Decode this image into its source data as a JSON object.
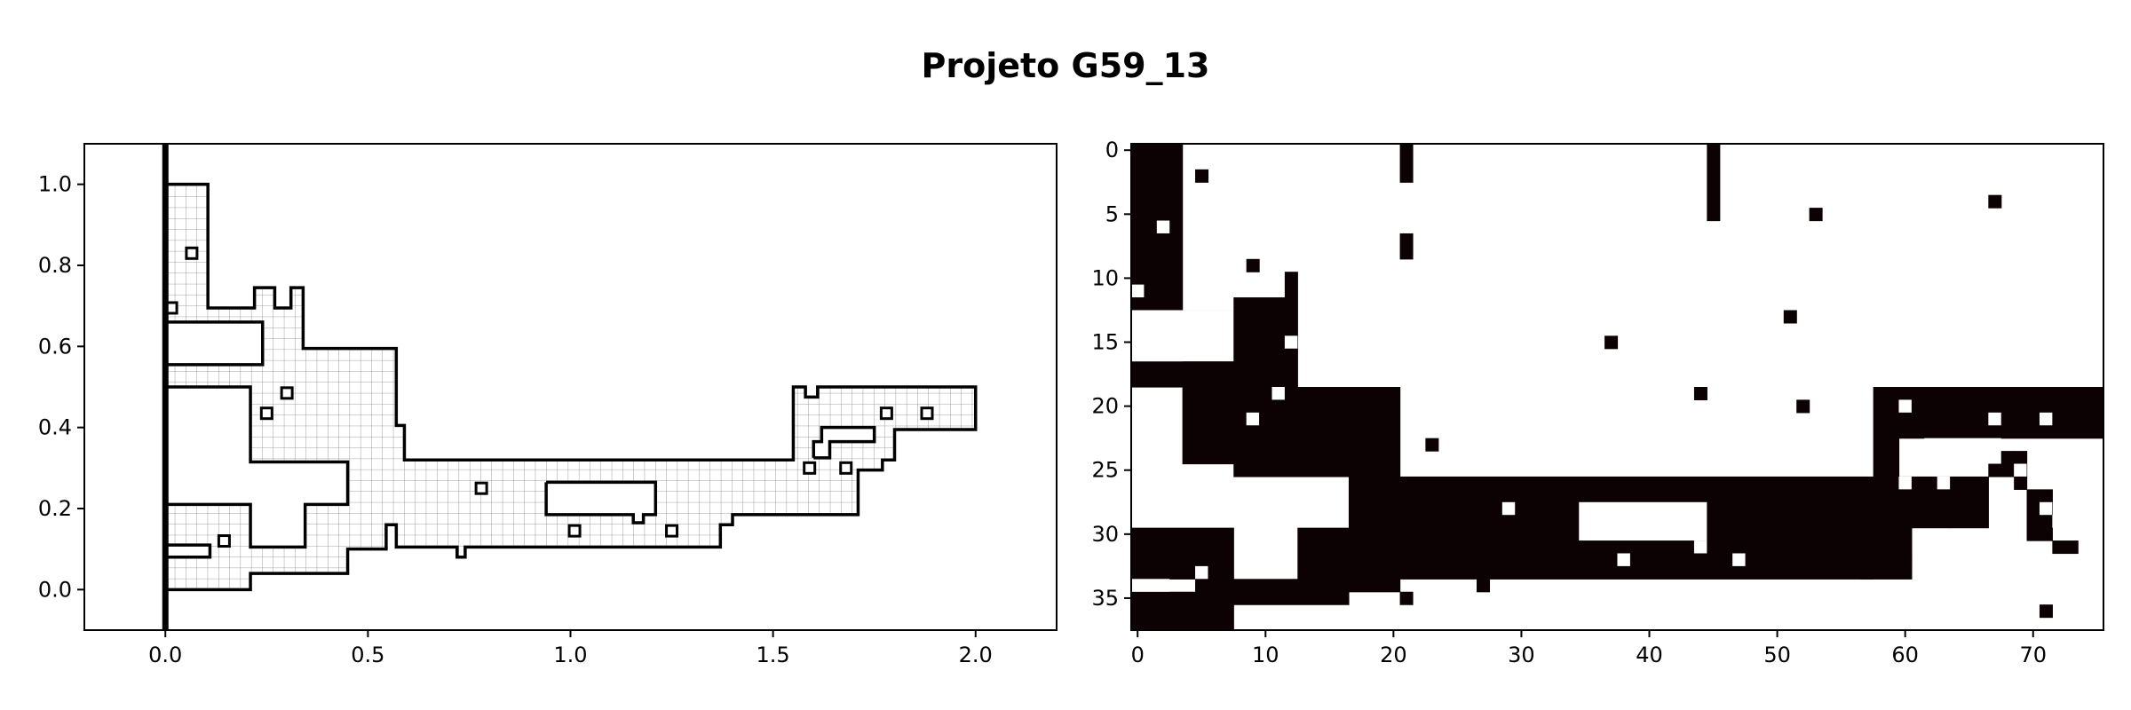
{
  "title": "Projeto G59_13",
  "chart_data": [
    {
      "type": "line",
      "description_role": "boundary polygons over a fine grid",
      "xlim": [
        -0.2,
        2.2
      ],
      "ylim": [
        -0.1,
        1.1
      ],
      "xticks": [
        0.0,
        0.5,
        1.0,
        1.5,
        2.0
      ],
      "xtick_labels": [
        "0.0",
        "0.5",
        "1.0",
        "1.5",
        "2.0"
      ],
      "yticks": [
        0.0,
        0.2,
        0.4,
        0.6,
        0.8,
        1.0
      ],
      "ytick_labels": [
        "0.0",
        "0.2",
        "0.4",
        "0.6",
        "0.8",
        "1.0"
      ],
      "grid": false,
      "shaded_region": {
        "x": [
          0.0,
          2.0
        ],
        "y": [
          0.0,
          1.0
        ],
        "cell": 0.027
      },
      "series": [
        {
          "points": [
            [
              0,
              1.0
            ],
            [
              0.105,
              1.0
            ],
            [
              0.105,
              0.695
            ],
            [
              0.22,
              0.695
            ],
            [
              0.22,
              0.745
            ],
            [
              0.27,
              0.745
            ],
            [
              0.27,
              0.695
            ],
            [
              0.31,
              0.695
            ],
            [
              0.31,
              0.745
            ],
            [
              0.34,
              0.745
            ],
            [
              0.34,
              0.595
            ],
            [
              0.57,
              0.595
            ],
            [
              0.57,
              0.405
            ],
            [
              0.59,
              0.405
            ],
            [
              0.59,
              0.32
            ],
            [
              1.55,
              0.32
            ],
            [
              1.55,
              0.5
            ],
            [
              1.58,
              0.5
            ],
            [
              1.58,
              0.475
            ],
            [
              1.61,
              0.475
            ],
            [
              1.61,
              0.5
            ],
            [
              2.0,
              0.5
            ],
            [
              2.0,
              0.395
            ],
            [
              1.8,
              0.395
            ],
            [
              1.8,
              0.32
            ],
            [
              1.77,
              0.32
            ],
            [
              1.77,
              0.295
            ],
            [
              1.71,
              0.295
            ],
            [
              1.71,
              0.185
            ],
            [
              1.4,
              0.185
            ],
            [
              1.4,
              0.16
            ],
            [
              1.37,
              0.16
            ],
            [
              1.37,
              0.105
            ],
            [
              0.74,
              0.105
            ],
            [
              0.74,
              0.08
            ],
            [
              0.72,
              0.08
            ],
            [
              0.72,
              0.105
            ],
            [
              0.57,
              0.105
            ],
            [
              0.57,
              0.16
            ],
            [
              0.545,
              0.16
            ],
            [
              0.545,
              0.1
            ],
            [
              0.45,
              0.1
            ],
            [
              0.45,
              0.04
            ],
            [
              0.21,
              0.04
            ],
            [
              0.21,
              0.0
            ],
            [
              0,
              0.0
            ]
          ]
        },
        {
          "points": [
            [
              0,
              0.66
            ],
            [
              0.24,
              0.66
            ],
            [
              0.24,
              0.555
            ],
            [
              0,
              0.555
            ],
            [
              0,
              0.66
            ]
          ]
        },
        {
          "points": [
            [
              0,
              0.5
            ],
            [
              0.21,
              0.5
            ],
            [
              0.21,
              0.315
            ],
            [
              0.45,
              0.315
            ],
            [
              0.45,
              0.21
            ],
            [
              0.345,
              0.21
            ],
            [
              0.345,
              0.105
            ],
            [
              0.21,
              0.105
            ],
            [
              0.21,
              0.21
            ],
            [
              0,
              0.21
            ]
          ]
        },
        {
          "points": [
            [
              0,
              0.11
            ],
            [
              0.11,
              0.11
            ],
            [
              0.11,
              0.08
            ],
            [
              0,
              0.08
            ]
          ]
        },
        {
          "points": [
            [
              0.94,
              0.265
            ],
            [
              1.21,
              0.265
            ],
            [
              1.21,
              0.185
            ],
            [
              1.18,
              0.185
            ],
            [
              1.18,
              0.165
            ],
            [
              1.155,
              0.165
            ],
            [
              1.155,
              0.185
            ],
            [
              0.94,
              0.185
            ],
            [
              0.94,
              0.265
            ]
          ]
        },
        {
          "points": [
            [
              1.6,
              0.325
            ],
            [
              1.6,
              0.365
            ],
            [
              1.62,
              0.365
            ],
            [
              1.62,
              0.4
            ],
            [
              1.75,
              0.4
            ],
            [
              1.75,
              0.365
            ],
            [
              1.64,
              0.365
            ],
            [
              1.64,
              0.325
            ],
            [
              1.6,
              0.325
            ]
          ]
        }
      ],
      "markers": [
        [
          0.065,
          0.83
        ],
        [
          0.015,
          0.695
        ],
        [
          0.25,
          0.435
        ],
        [
          0.3,
          0.485
        ],
        [
          0.78,
          0.25
        ],
        [
          0.145,
          0.12
        ],
        [
          1.01,
          0.145
        ],
        [
          1.25,
          0.145
        ],
        [
          1.59,
          0.3
        ],
        [
          1.68,
          0.3
        ],
        [
          1.78,
          0.435
        ],
        [
          1.88,
          0.435
        ]
      ],
      "vertical_line_x": 0.0
    },
    {
      "type": "heatmap",
      "description_role": "binary occupancy grid (black = 1, white = 0)",
      "cols": 76,
      "rows": 38,
      "xticks": [
        0,
        10,
        20,
        30,
        40,
        50,
        60,
        70
      ],
      "xtick_labels": [
        "0",
        "10",
        "20",
        "30",
        "40",
        "50",
        "60",
        "70"
      ],
      "yticks": [
        0,
        5,
        10,
        15,
        20,
        25,
        30,
        35
      ],
      "ytick_labels": [
        "0",
        "5",
        "10",
        "15",
        "20",
        "25",
        "30",
        "35"
      ],
      "colors": {
        "on": "#0d0203",
        "off": "#ffffff"
      },
      "black_rects": [
        [
          0,
          0,
          4,
          13
        ],
        [
          4,
          13,
          8,
          12
        ],
        [
          0,
          17,
          12,
          2
        ],
        [
          8,
          12,
          5,
          7
        ],
        [
          8,
          19,
          13,
          7
        ],
        [
          17,
          26,
          4,
          9
        ],
        [
          20,
          26,
          41,
          8
        ],
        [
          21,
          0,
          1,
          3
        ],
        [
          21,
          7,
          1,
          2
        ],
        [
          45,
          0,
          1,
          6
        ],
        [
          12,
          10,
          1,
          2
        ],
        [
          58,
          19,
          18,
          4
        ],
        [
          58,
          23,
          2,
          3
        ],
        [
          58,
          26,
          3,
          4
        ],
        [
          61,
          26,
          3,
          4
        ],
        [
          64,
          26,
          3,
          4
        ],
        [
          67,
          24,
          2,
          2
        ],
        [
          69,
          24,
          1,
          3
        ],
        [
          0,
          30,
          8,
          4
        ],
        [
          0,
          35,
          8,
          3
        ],
        [
          5,
          34,
          12,
          2
        ],
        [
          13,
          30,
          8,
          4
        ],
        [
          54,
          32,
          6,
          1
        ],
        [
          57,
          33,
          1,
          1
        ],
        [
          5,
          2,
          1,
          1
        ],
        [
          53,
          5,
          1,
          1
        ],
        [
          67,
          4,
          1,
          1
        ],
        [
          9,
          9,
          1,
          1
        ],
        [
          37,
          15,
          1,
          1
        ],
        [
          51,
          13,
          1,
          1
        ],
        [
          44,
          19,
          1,
          1
        ],
        [
          52,
          20,
          1,
          1
        ],
        [
          23,
          23,
          1,
          1
        ],
        [
          60,
          32,
          1,
          1
        ],
        [
          27,
          34,
          1,
          1
        ],
        [
          21,
          35,
          1,
          1
        ],
        [
          71,
          36,
          1,
          1
        ],
        [
          70,
          27,
          2,
          4
        ],
        [
          72,
          31,
          2,
          1
        ]
      ],
      "white_rects": [
        [
          0,
          13,
          8,
          4
        ],
        [
          2,
          6,
          1,
          1
        ],
        [
          0,
          11,
          1,
          1
        ],
        [
          12,
          15,
          1,
          1
        ],
        [
          11,
          19,
          1,
          1
        ],
        [
          9,
          21,
          1,
          1
        ],
        [
          35,
          28,
          10,
          3
        ],
        [
          29,
          28,
          1,
          1
        ],
        [
          38,
          32,
          1,
          1
        ],
        [
          47,
          32,
          1,
          1
        ],
        [
          44,
          31,
          1,
          1
        ],
        [
          5,
          33,
          1,
          1
        ],
        [
          0,
          34,
          3,
          1
        ],
        [
          60,
          20,
          1,
          1
        ],
        [
          62,
          23,
          6,
          2
        ],
        [
          67,
          21,
          1,
          1
        ],
        [
          71,
          21,
          1,
          1
        ],
        [
          60,
          26,
          1,
          1
        ],
        [
          63,
          26,
          1,
          1
        ],
        [
          69,
          25,
          1,
          1
        ],
        [
          71,
          28,
          1,
          1
        ],
        [
          72,
          29,
          1,
          1
        ]
      ]
    }
  ]
}
